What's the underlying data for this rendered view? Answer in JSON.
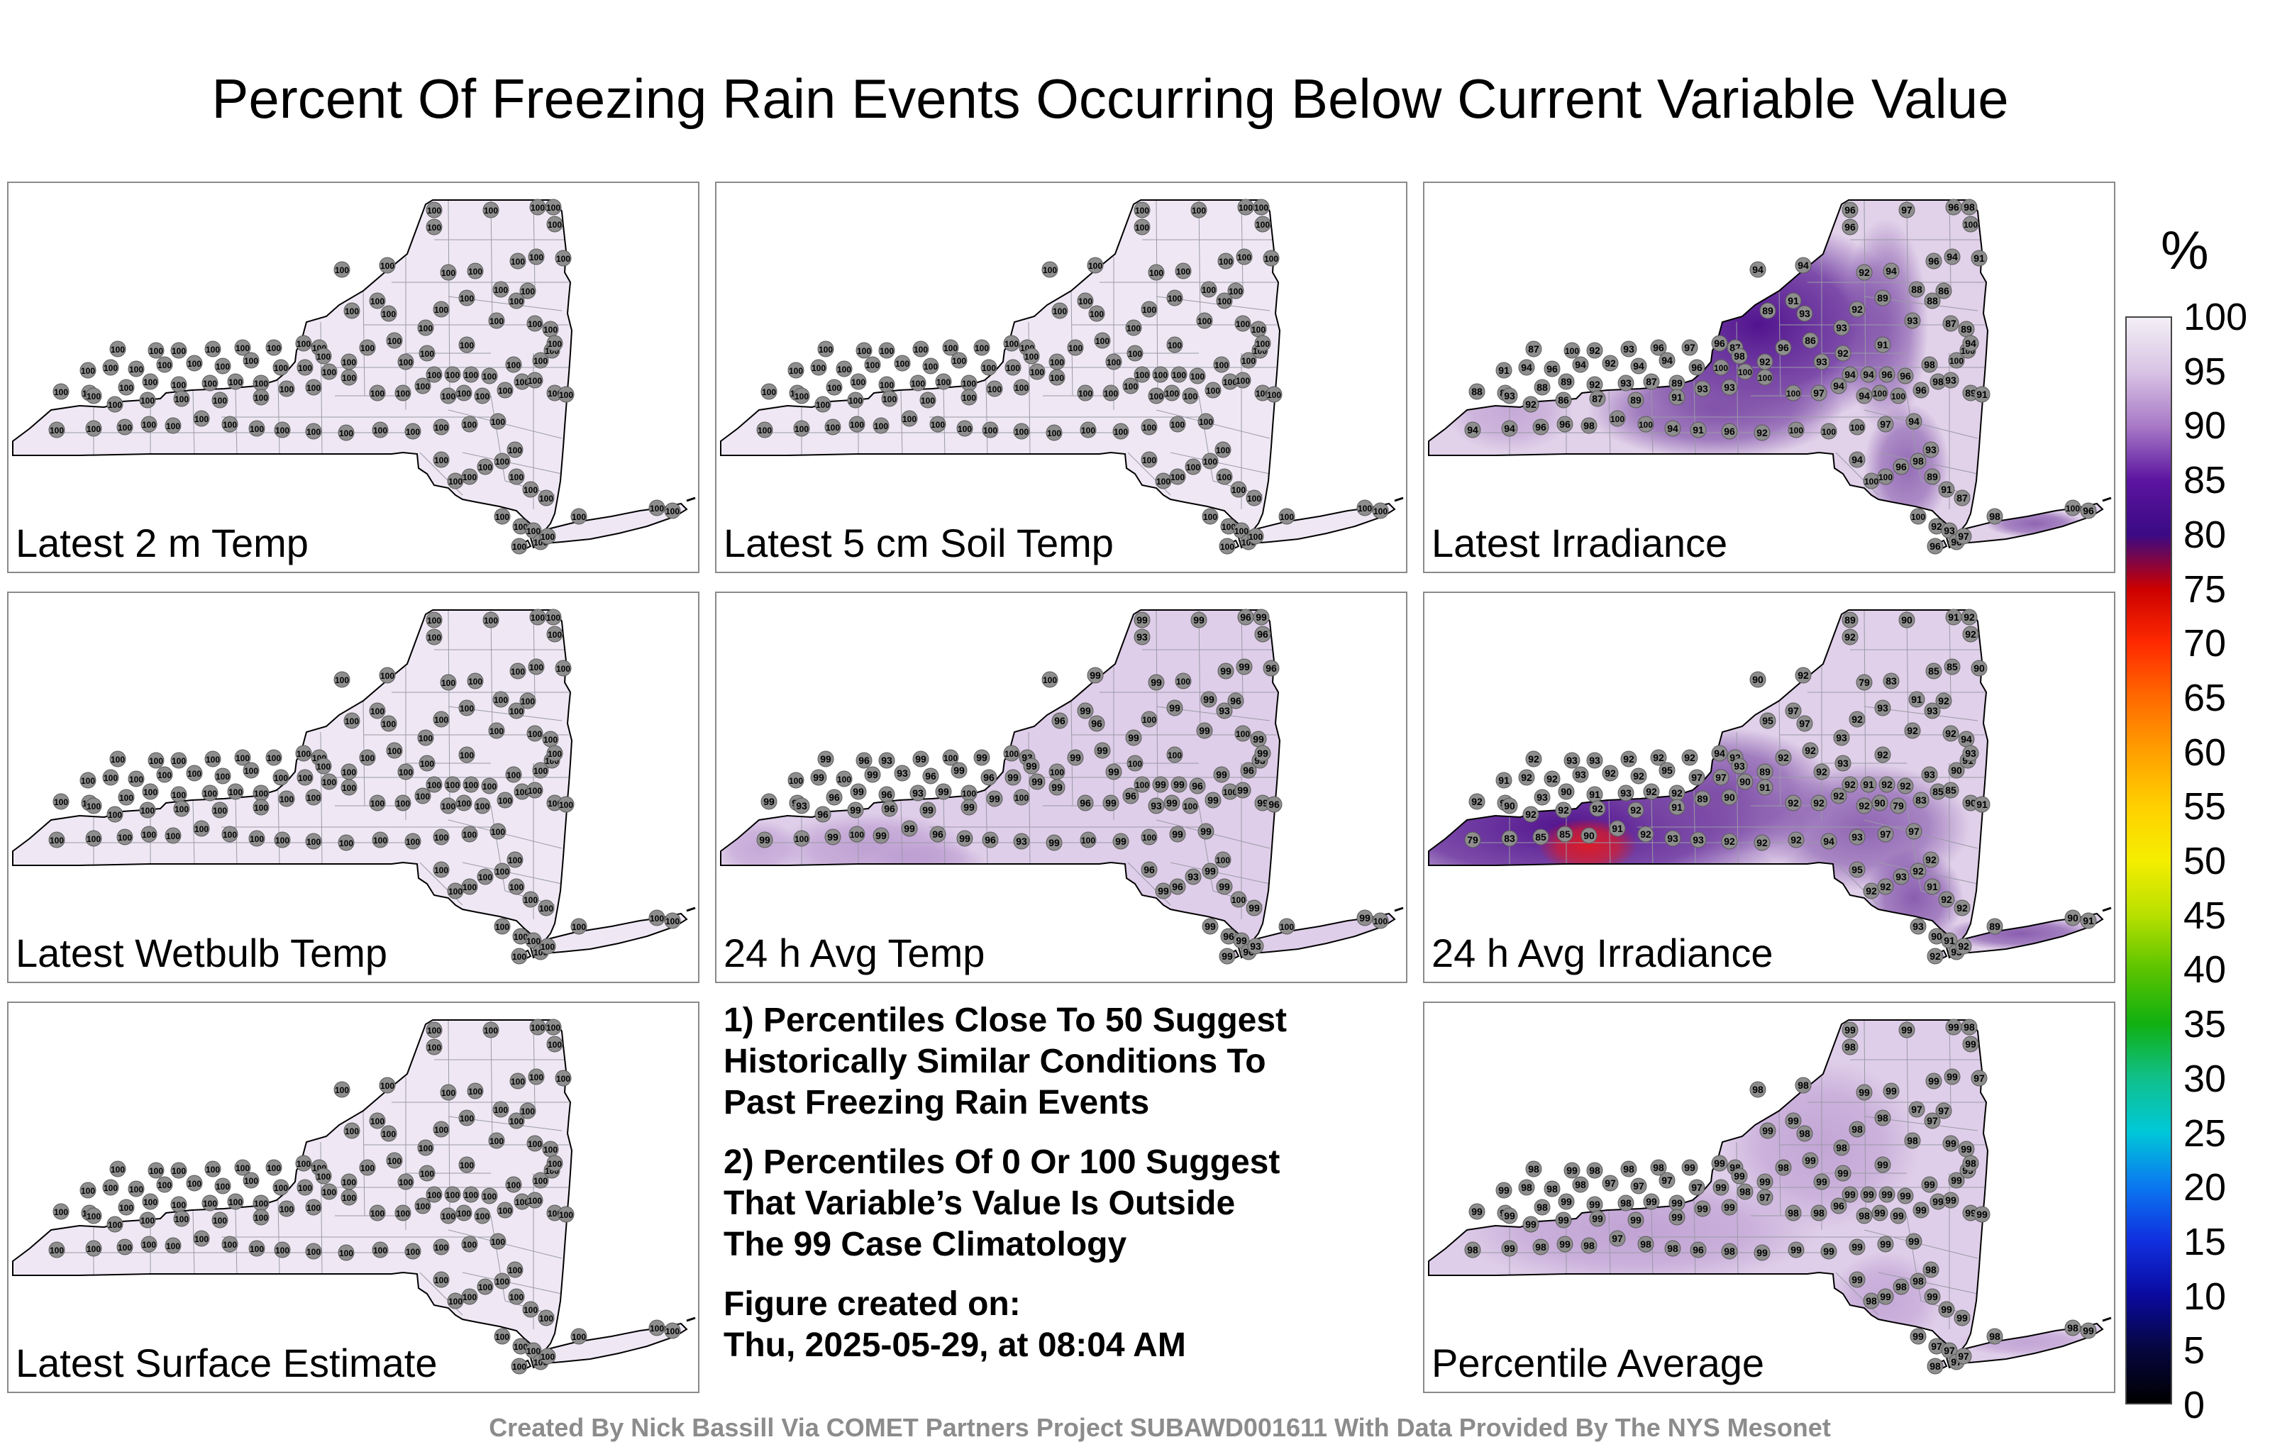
{
  "title": "Percent Of Freezing Rain Events Occurring Below Current Variable Value",
  "colors": {
    "uniform": "#efe8f4",
    "light": "#dcc9e6",
    "mid": "#b998cf",
    "purple": "#7b4aa5",
    "deep": "#4b0a8a",
    "red": "#e01b24",
    "marker": "#8e8e8e"
  },
  "panels": [
    {
      "id": "temp2m",
      "label": "Latest 2 m Temp",
      "shading": "uniform",
      "values": []
    },
    {
      "id": "soil5cm",
      "label": "Latest 5 cm Soil Temp",
      "shading": "uniform",
      "values": []
    },
    {
      "id": "irradiance",
      "label": "Latest Irradiance",
      "shading": "irradiance",
      "values": [
        96,
        97,
        96,
        98,
        100,
        96,
        94,
        94,
        92,
        94,
        96,
        94,
        91,
        88,
        86,
        88,
        89,
        92,
        93,
        87,
        89,
        93,
        93,
        91,
        89,
        87,
        86,
        92,
        93,
        94,
        94,
        96,
        96,
        98,
        100,
        100,
        94,
        91,
        96,
        92,
        100,
        100,
        100,
        97,
        94,
        94,
        100,
        100,
        96,
        98,
        93,
        89,
        91,
        87,
        100,
        92,
        93
      ]
    },
    {
      "id": "wetbulb",
      "label": "Latest Wetbulb Temp",
      "shading": "uniform",
      "values": []
    },
    {
      "id": "avgtemp24",
      "label": "24 h Avg Temp",
      "shading": "avgtemp",
      "values": [
        99,
        99,
        96,
        99,
        96,
        93,
        99,
        100,
        99,
        100
      ]
    },
    {
      "id": "avgirr24",
      "label": "24 h Avg Irradiance",
      "shading": "avgirr",
      "values": [
        89,
        90,
        91,
        92,
        92,
        92,
        92,
        90,
        79,
        83,
        85,
        85,
        90,
        91,
        92,
        93,
        93,
        92,
        92,
        92,
        94,
        93,
        97,
        97,
        95,
        92,
        92,
        93,
        92,
        92,
        91,
        92,
        92,
        93,
        90,
        91,
        93,
        92,
        92
      ]
    },
    {
      "id": "surface",
      "label": "Latest Surface Estimate",
      "shading": "uniform",
      "values": []
    },
    {
      "id": "average",
      "label": "Percentile Average",
      "shading": "average",
      "values": [
        99,
        99,
        99,
        98,
        99,
        98,
        98,
        98,
        99,
        99,
        99,
        99,
        97,
        97,
        97,
        97,
        98,
        98,
        98,
        99,
        99,
        98,
        98,
        99,
        99,
        98,
        99,
        99,
        99,
        99,
        99,
        99,
        99,
        99,
        99,
        99,
        98,
        99,
        98,
        99,
        98,
        97,
        98,
        98,
        96,
        98,
        99,
        99,
        99,
        99
      ]
    }
  ],
  "notes": [
    [
      "1) Percentiles Close To 50 Suggest",
      "Historically Similar Conditions To",
      "Past Freezing Rain Events"
    ],
    [
      "2) Percentiles Of 0 Or 100 Suggest",
      "That Variable’s Value Is Outside",
      "The 99 Case Climatology"
    ],
    [
      "Figure created on:",
      "Thu, 2025-05-29, at 08:04 AM"
    ]
  ],
  "colorbar": {
    "unit": "%",
    "ticks": [
      "100",
      "95",
      "90",
      "85",
      "80",
      "75",
      "70",
      "65",
      "60",
      "55",
      "50",
      "45",
      "40",
      "35",
      "30",
      "25",
      "20",
      "15",
      "10",
      "5",
      "0"
    ],
    "stops": [
      "#f3eff6",
      "#d8c3e4",
      "#a879c6",
      "#5b14a0",
      "#3a0a84",
      "#cc0000",
      "#ff2a00",
      "#ff6a00",
      "#ffa000",
      "#ffd000",
      "#f5ee00",
      "#b8e000",
      "#5cc400",
      "#10b010",
      "#10c08a",
      "#00c8d8",
      "#0a78f0",
      "#1030e0",
      "#0a0aa0",
      "#060640",
      "#000000"
    ]
  },
  "credit": "Created By Nick Bassill Via COMET Partners Project SUBAWD001611 With Data Provided By The NYS Mesonet"
}
